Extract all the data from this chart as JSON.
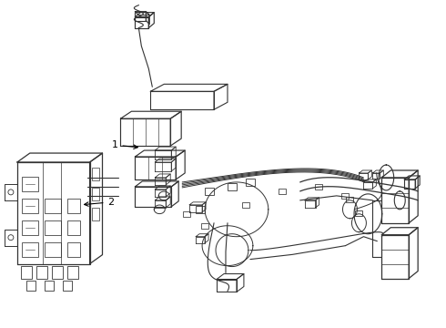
{
  "background_color": "#ffffff",
  "line_color": "#333333",
  "label_color": "#000000",
  "fig_width": 4.9,
  "fig_height": 3.6,
  "dpi": 100,
  "label1": "1",
  "label2": "2"
}
